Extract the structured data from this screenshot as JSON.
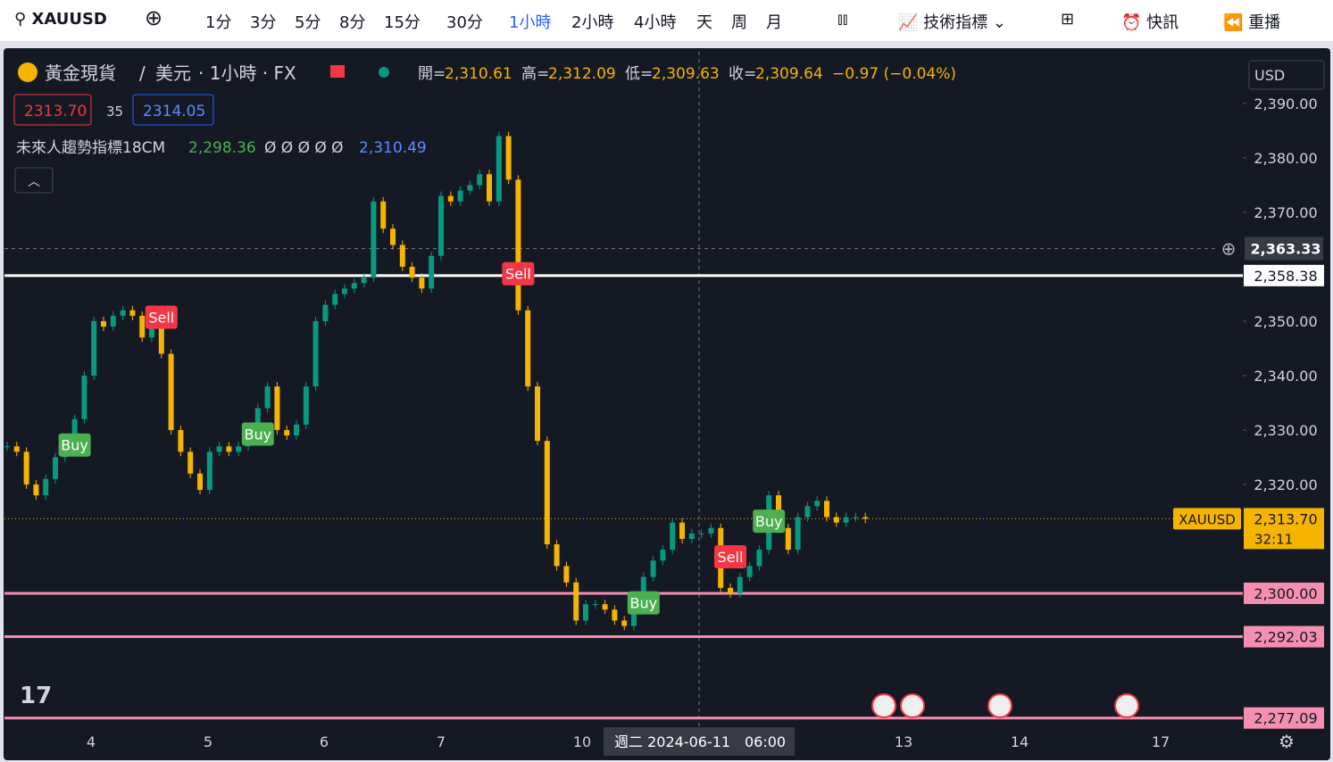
{
  "toolbar": {
    "symbol": "XAUUSD",
    "intervals": [
      "1分",
      "3分",
      "5分",
      "8分",
      "15分",
      "30分",
      "1小時",
      "2小時",
      "4小時",
      "天",
      "周",
      "月"
    ],
    "active": 6,
    "indicators": "技術指標",
    "news": "快訊",
    "replay": "重播"
  },
  "legend": {
    "name": "黃金現貨",
    "sep": "/",
    "currency": "美元",
    "interval": "· 1小時 · FX",
    "ohlc": [
      {
        "label": "開=",
        "value": "2,310.61"
      },
      {
        "label": "高=",
        "value": "2,312.09"
      },
      {
        "label": "低=",
        "value": "2,309.63"
      },
      {
        "label": "收=",
        "value": "2,309.64"
      }
    ],
    "change": "−0.97 (−0.04%)",
    "bid": "2313.70",
    "spread": "35",
    "ask": "2314.05",
    "indicator": "未來人趨勢指標18CM",
    "ind_v1": "2,298.36",
    "ind_marks": "Ø Ø Ø Ø Ø",
    "ind_v2": "2,310.49"
  },
  "currency_select": "USD",
  "chart_data": {
    "type": "candlestick",
    "up_color": "#089981",
    "down_color": "#f5b400",
    "values": [
      2327,
      2326,
      2320,
      2318,
      2321,
      2325,
      2327,
      2332,
      2340,
      2350,
      2349,
      2351,
      2352,
      2351,
      2347,
      2350,
      2344,
      2330,
      2326,
      2322,
      2319,
      2326,
      2327,
      2326,
      2327,
      2329,
      2334,
      2338,
      2330,
      2329,
      2331,
      2338,
      2350,
      2353,
      2355,
      2356,
      2357,
      2358,
      2372,
      2367,
      2364,
      2360,
      2358,
      2356,
      2362,
      2373,
      2372,
      2374,
      2375,
      2377,
      2372,
      2384,
      2376,
      2352,
      2338,
      2328,
      2309,
      2305,
      2302,
      2295,
      2298,
      2298,
      2297,
      2295,
      2294,
      2298,
      2303,
      2306,
      2308,
      2313,
      2310,
      2311,
      2311,
      2312,
      2301,
      2300,
      2303,
      2305,
      2308,
      2318,
      2312,
      2308,
      2314,
      2316,
      2317,
      2314,
      2313,
      2314,
      2314,
      2313.7
    ],
    "ylim": [
      2275.4,
      2399.5
    ],
    "yticks": [
      {
        "value": 2390,
        "label": "2,390.00"
      },
      {
        "value": 2380,
        "label": "2,380.00"
      },
      {
        "value": 2370,
        "label": "2,370.00"
      },
      {
        "value": 2350,
        "label": "2,350.00"
      },
      {
        "value": 2340,
        "label": "2,340.00"
      },
      {
        "value": 2330,
        "label": "2,330.00"
      },
      {
        "value": 2320,
        "label": "2,320.00"
      }
    ],
    "x_labels": [
      "4",
      "5",
      "6",
      "7",
      "10",
      "13",
      "14",
      "17"
    ],
    "signals": [
      {
        "label": "Sell",
        "index": 16
      },
      {
        "label": "Sell",
        "index": 53
      },
      {
        "label": "Sell",
        "index": 75
      },
      {
        "label": "Buy",
        "index": 7
      },
      {
        "label": "Buy",
        "index": 26
      },
      {
        "label": "Buy",
        "index": 66
      },
      {
        "label": "Buy",
        "index": 79
      }
    ],
    "levels": [
      {
        "value": 2358.38,
        "label": "2,358.38",
        "color": "#ffffff"
      },
      {
        "value": 2300,
        "label": "2,300.00",
        "color": "#f48fb1"
      },
      {
        "value": 2292.03,
        "label": "2,292.03",
        "color": "#f48fb1"
      },
      {
        "value": 2277.09,
        "label": "2,277.09",
        "color": "#f48fb1"
      }
    ],
    "crosshair": {
      "value": 2363.33,
      "label": "2,363.33",
      "date": "週二 2024-06-11",
      "time": "06:00"
    },
    "current": {
      "symbol": "XAUUSD",
      "value": 2313.7,
      "label": "2,313.70",
      "countdown": "32:11"
    }
  }
}
